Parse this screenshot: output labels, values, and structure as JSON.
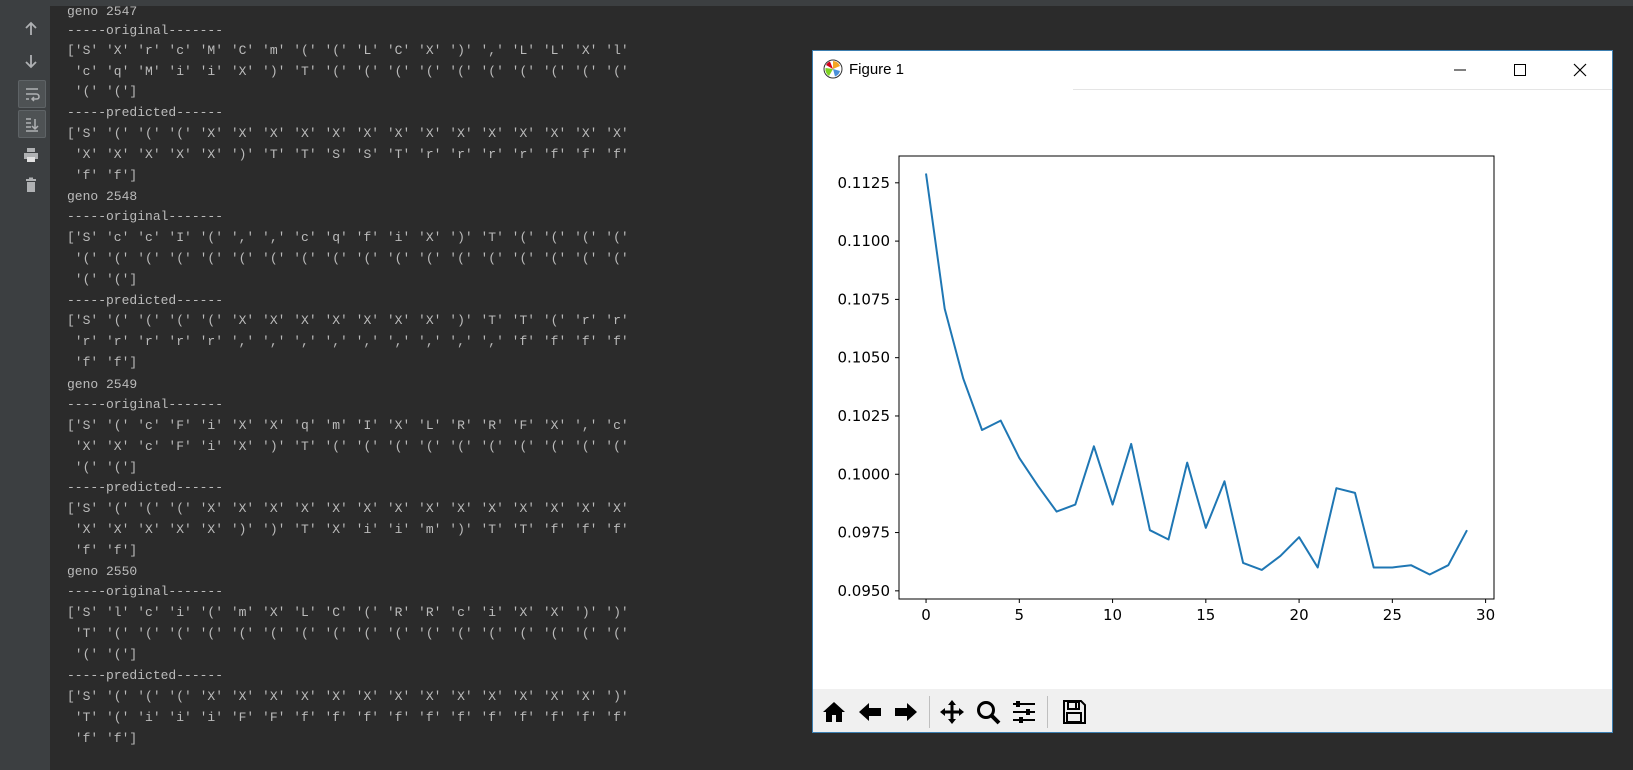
{
  "console": {
    "lines": [
      "geno 2547",
      "-----original-------",
      "['S' 'X' 'r' 'c' 'M' 'C' 'm' '(' '(' 'L' 'C' 'X' ')' ',' 'L' 'L' 'X' 'l'",
      " 'c' 'q' 'M' 'i' 'i' 'X' ')' 'T' '(' '(' '(' '(' '(' '(' '(' '(' '(' '('",
      " '(' '(']",
      "-----predicted------",
      "['S' '(' '(' '(' 'X' 'X' 'X' 'X' 'X' 'X' 'X' 'X' 'X' 'X' 'X' 'X' 'X' 'X'",
      " 'X' 'X' 'X' 'X' 'X' ')' 'T' 'T' 'S' 'S' 'T' 'r' 'r' 'r' 'r' 'f' 'f' 'f'",
      " 'f' 'f']",
      "geno 2548",
      "-----original-------",
      "['S' 'c' 'c' 'I' '(' ',' ',' 'c' 'q' 'f' 'i' 'X' ')' 'T' '(' '(' '(' '('",
      " '(' '(' '(' '(' '(' '(' '(' '(' '(' '(' '(' '(' '(' '(' '(' '(' '(' '('",
      " '(' '(']",
      "-----predicted------",
      "['S' '(' '(' '(' '(' 'X' 'X' 'X' 'X' 'X' 'X' 'X' ')' 'T' 'T' '(' 'r' 'r'",
      " 'r' 'r' 'r' 'r' 'r' ',' ',' ',' ',' ',' ',' ',' ',' ',' 'f' 'f' 'f' 'f'",
      " 'f' 'f']",
      "geno 2549",
      "-----original-------",
      "['S' '(' 'c' 'F' 'i' 'X' 'X' 'q' 'm' 'I' 'X' 'L' 'R' 'R' 'F' 'X' ',' 'c'",
      " 'X' 'X' 'c' 'F' 'i' 'X' ')' 'T' '(' '(' '(' '(' '(' '(' '(' '(' '(' '('",
      " '(' '(']",
      "-----predicted------",
      "['S' '(' '(' '(' 'X' 'X' 'X' 'X' 'X' 'X' 'X' 'X' 'X' 'X' 'X' 'X' 'X' 'X'",
      " 'X' 'X' 'X' 'X' 'X' ')' ')' 'T' 'X' 'i' 'i' 'm' ')' 'T' 'T' 'f' 'f' 'f'",
      " 'f' 'f']",
      "geno 2550",
      "-----original-------",
      "['S' 'l' 'c' 'i' '(' 'm' 'X' 'L' 'C' '(' 'R' 'R' 'c' 'i' 'X' 'X' ')' ')'",
      " 'T' '(' '(' '(' '(' '(' '(' '(' '(' '(' '(' '(' '(' '(' '(' '(' '(' '('",
      " '(' '(']",
      "-----predicted------",
      "['S' '(' '(' '(' 'X' 'X' 'X' 'X' 'X' 'X' 'X' 'X' 'X' 'X' 'X' 'X' 'X' ')'",
      " 'T' '(' 'i' 'i' 'i' 'F' 'F' 'f' 'f' 'f' 'f' 'f' 'f' 'f' 'f' 'f' 'f' 'f'",
      " 'f' 'f']"
    ]
  },
  "toolbar": {
    "icons": [
      "up-arrow-icon",
      "down-arrow-icon",
      "soft-wrap-icon",
      "scroll-to-end-icon",
      "print-icon",
      "trash-icon"
    ]
  },
  "figure_window": {
    "title": "Figure 1",
    "controls": [
      "minimize",
      "maximize",
      "close"
    ],
    "nav_icons": [
      "home-icon",
      "back-arrow-icon",
      "forward-arrow-icon",
      "pan-icon",
      "zoom-icon",
      "subplots-icon",
      "save-icon"
    ]
  },
  "colors": {
    "console_bg": "#2b2b2b",
    "console_text": "#bbbbbb",
    "line": "#1f77b4",
    "toolbar_bg": "#3c3f41"
  },
  "chart_data": {
    "type": "line",
    "x": [
      0,
      1,
      2,
      3,
      4,
      5,
      6,
      7,
      8,
      9,
      10,
      11,
      12,
      13,
      14,
      15,
      16,
      17,
      18,
      19,
      20,
      21,
      22,
      23,
      24,
      25,
      26,
      27,
      28,
      29
    ],
    "series": [
      {
        "values": [
          0.1129,
          0.1071,
          0.1041,
          0.1019,
          0.1023,
          0.1007,
          0.0995,
          0.0984,
          0.0987,
          0.1012,
          0.0987,
          0.1013,
          0.0976,
          0.0972,
          0.1005,
          0.0977,
          0.0997,
          0.0962,
          0.0959,
          0.0965,
          0.0973,
          0.096,
          0.0994,
          0.0992,
          0.096,
          0.096,
          0.0961,
          0.0957,
          0.0961,
          0.0976
        ]
      }
    ],
    "xlim": [
      -1.45,
      30.45
    ],
    "ylim": [
      0.09465,
      0.11365
    ],
    "xticks": [
      0,
      5,
      10,
      15,
      20,
      25,
      30
    ],
    "xtick_labels": [
      "0",
      "5",
      "10",
      "15",
      "20",
      "25",
      "30"
    ],
    "yticks": [
      0.095,
      0.0975,
      0.1,
      0.1025,
      0.105,
      0.1075,
      0.11,
      0.1125
    ],
    "ytick_labels": [
      "0.0950",
      "0.0975",
      "0.1000",
      "0.1025",
      "0.1050",
      "0.1075",
      "0.1100",
      "0.1125"
    ],
    "grid": false,
    "title": "",
    "xlabel": "",
    "ylabel": ""
  }
}
